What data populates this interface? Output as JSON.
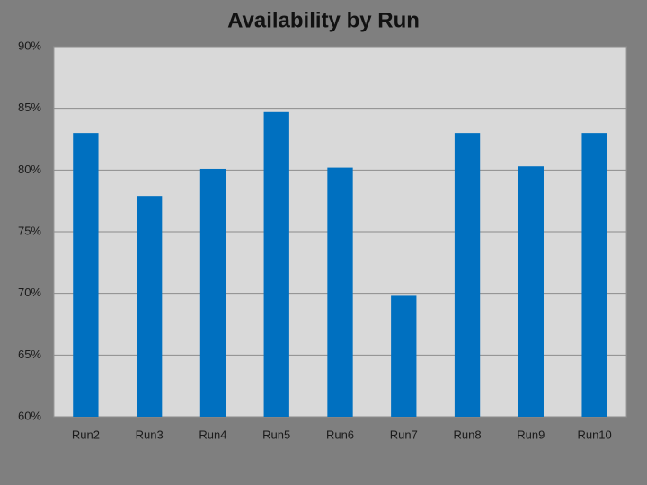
{
  "chart_data": {
    "type": "bar",
    "title": "Availability by Run",
    "categories": [
      "Run2",
      "Run3",
      "Run4",
      "Run5",
      "Run6",
      "Run7",
      "Run8",
      "Run9",
      "Run10"
    ],
    "values": [
      83,
      77.9,
      80.1,
      84.7,
      80.2,
      69.8,
      83,
      80.3,
      83
    ],
    "color": "#0070c0",
    "ylim": [
      60,
      90
    ],
    "yticks": [
      {
        "value": 60,
        "label": "60%"
      },
      {
        "value": 65,
        "label": "65%"
      },
      {
        "value": 70,
        "label": "70%"
      },
      {
        "value": 75,
        "label": "75%"
      },
      {
        "value": 80,
        "label": "80%"
      },
      {
        "value": 85,
        "label": "85%"
      },
      {
        "value": 90,
        "label": "90%"
      }
    ],
    "grid": true
  }
}
